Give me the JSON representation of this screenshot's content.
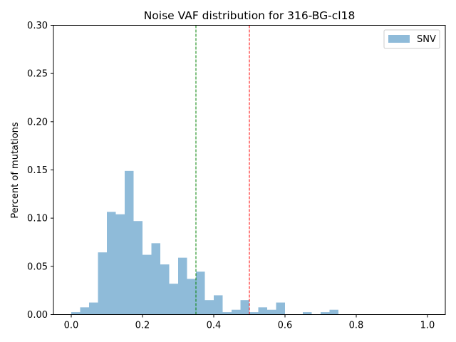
{
  "chart_data": {
    "type": "bar",
    "title": "Noise VAF distribution for 316-BG-cl18",
    "xlabel": "",
    "ylabel": "Percent of mutations",
    "xlim": [
      -0.05,
      1.05
    ],
    "ylim": [
      0,
      0.3
    ],
    "xticks": [
      0.0,
      0.2,
      0.4,
      0.6,
      0.8,
      1.0
    ],
    "xtick_labels": [
      "0.0",
      "0.2",
      "0.4",
      "0.6",
      "0.8",
      "1.0"
    ],
    "yticks": [
      0.0,
      0.05,
      0.1,
      0.15,
      0.2,
      0.25,
      0.3
    ],
    "ytick_labels": [
      "0.00",
      "0.05",
      "0.10",
      "0.15",
      "0.20",
      "0.25",
      "0.30"
    ],
    "bin_width": 0.025,
    "bin_starts": [
      0.0,
      0.025,
      0.05,
      0.075,
      0.1,
      0.125,
      0.15,
      0.175,
      0.2,
      0.225,
      0.25,
      0.275,
      0.3,
      0.325,
      0.35,
      0.375,
      0.4,
      0.425,
      0.45,
      0.475,
      0.5,
      0.525,
      0.55,
      0.575,
      0.6,
      0.625,
      0.65,
      0.675,
      0.7,
      0.725,
      0.75,
      0.775,
      0.8,
      0.825,
      0.85,
      0.875,
      0.9,
      0.925,
      0.95,
      0.975
    ],
    "series": [
      {
        "name": "SNV",
        "color": "#8fbbd9",
        "values": [
          0.0025,
          0.0075,
          0.0125,
          0.0645,
          0.1065,
          0.104,
          0.149,
          0.097,
          0.062,
          0.074,
          0.052,
          0.032,
          0.059,
          0.037,
          0.0445,
          0.015,
          0.02,
          0.0025,
          0.005,
          0.015,
          0.0025,
          0.0075,
          0.005,
          0.0125,
          0.0,
          0.0,
          0.0025,
          0.0,
          0.0025,
          0.005,
          0.0,
          0.0,
          0.0,
          0.0,
          0.0,
          0.0,
          0.0,
          0.0,
          0.0,
          0.0
        ]
      }
    ],
    "vlines": [
      {
        "x": 0.35,
        "color": "#008000",
        "style": "dashed"
      },
      {
        "x": 0.5,
        "color": "#ff0000",
        "style": "dashed"
      }
    ],
    "legend_position": "top-right"
  }
}
